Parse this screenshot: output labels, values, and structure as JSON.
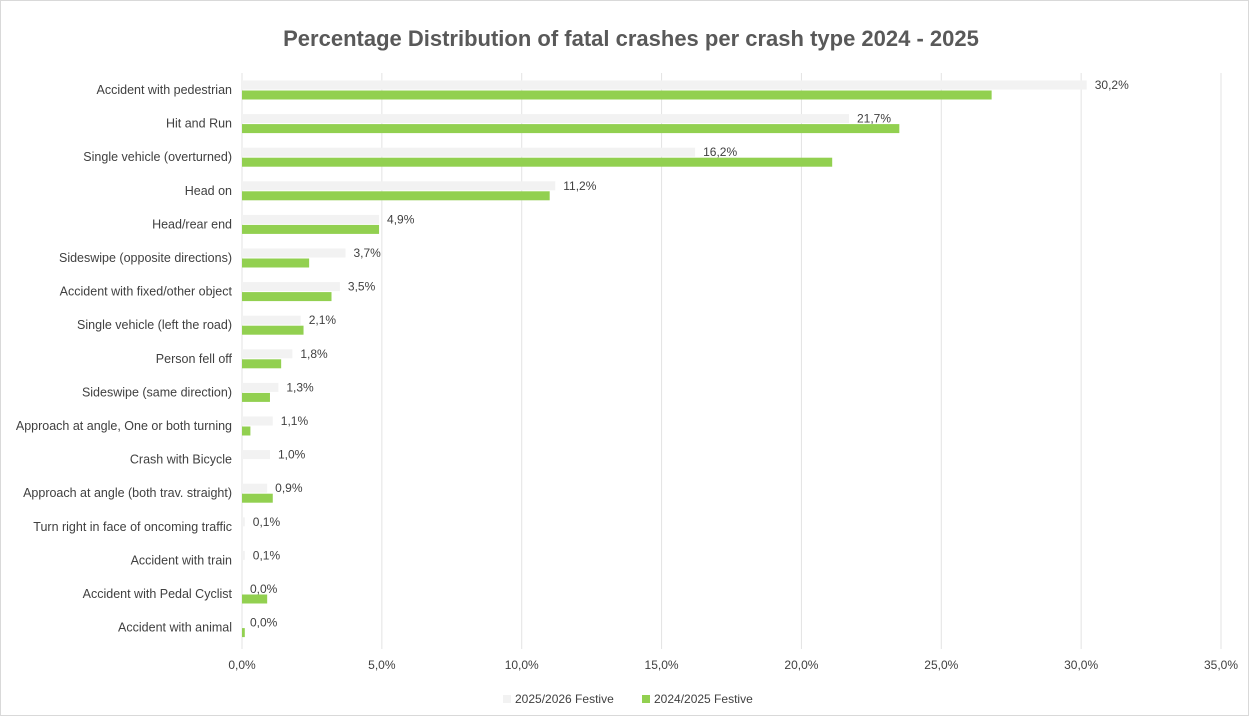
{
  "chart_data": {
    "type": "bar",
    "orientation": "horizontal",
    "title": "Percentage Distribution of fatal crashes per crash type 2024 - 2025",
    "categories": [
      "Accident with pedestrian",
      "Hit and Run",
      "Single vehicle (overturned)",
      "Head on",
      "Head/rear end",
      "Sideswipe (opposite directions)",
      "Accident with fixed/other object",
      "Single vehicle (left the road)",
      "Person fell off",
      "Sideswipe (same direction)",
      "Approach at angle,  One or both turning",
      "Crash with Bicycle",
      "Approach at angle (both trav. straight)",
      "Turn right in face of oncoming traffic",
      "Accident with train",
      "Accident with Pedal Cyclist",
      "Accident with animal"
    ],
    "series": [
      {
        "name": "2025/2026 Festive",
        "color": "#f2f2f2",
        "values": [
          30.2,
          21.7,
          16.2,
          11.2,
          4.9,
          3.7,
          3.5,
          2.1,
          1.8,
          1.3,
          1.1,
          1.0,
          0.9,
          0.1,
          0.1,
          0.0,
          0.0
        ],
        "data_labels": [
          "30,2%",
          "21,7%",
          "16,2%",
          "11,2%",
          "4,9%",
          "3,7%",
          "3,5%",
          "2,1%",
          "1,8%",
          "1,3%",
          "1,1%",
          "1,0%",
          "0,9%",
          "0,1%",
          "0,1%",
          "0,0%",
          "0,0%"
        ]
      },
      {
        "name": "2024/2025 Festive",
        "color": "#92d050",
        "values": [
          26.8,
          23.5,
          21.1,
          11.0,
          4.9,
          2.4,
          3.2,
          2.2,
          1.4,
          1.0,
          0.3,
          0.0,
          1.1,
          0.0,
          0.0,
          0.9,
          0.1
        ]
      }
    ],
    "x_axis": {
      "min": 0,
      "max": 35,
      "step": 5,
      "tick_labels": [
        "0,0%",
        "5,0%",
        "10,0%",
        "15,0%",
        "20,0%",
        "25,0%",
        "30,0%",
        "35,0%"
      ]
    },
    "grid": true,
    "legend_position": "bottom"
  }
}
